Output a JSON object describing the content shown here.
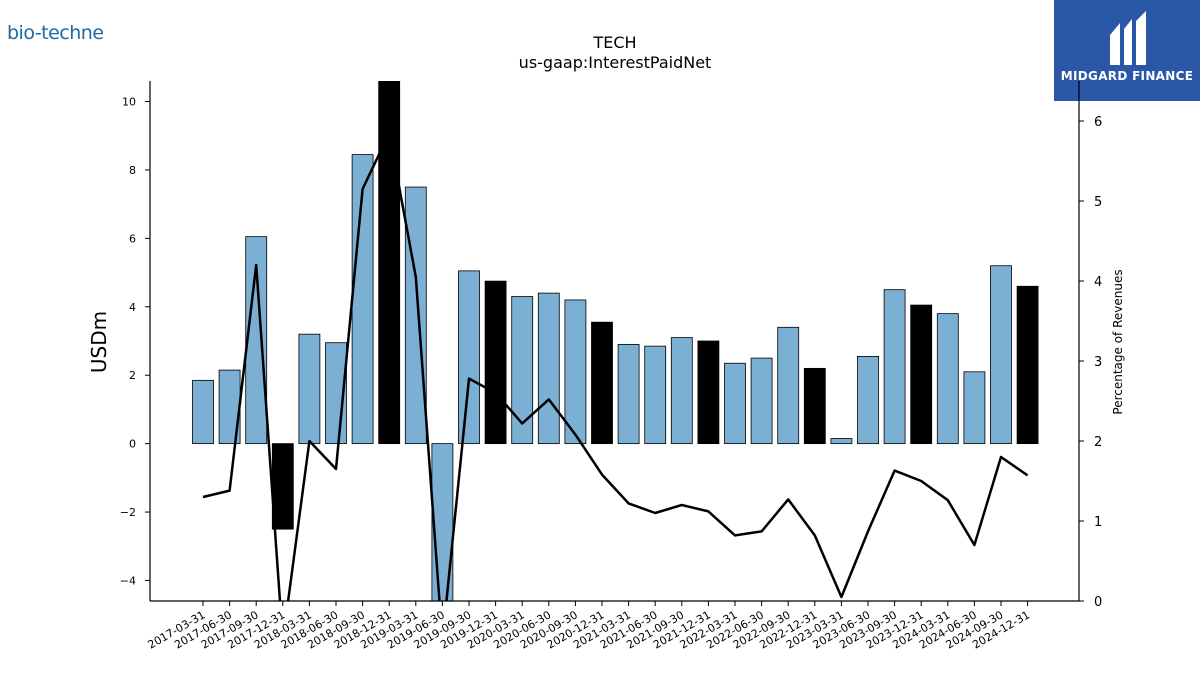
{
  "brand": {
    "left_logo": "bio-techne",
    "right_logo": "MIDGARD FINANCE"
  },
  "chart_data": {
    "type": "bar",
    "title": "TECH",
    "subtitle": "us-gaap:InterestPaidNet",
    "ylabel": "USDm",
    "y2label": "Percentage of Revenues",
    "ylim": [
      -4.6,
      10.6
    ],
    "y2lim": [
      0,
      6.5
    ],
    "yticks": [
      -4,
      -2,
      0,
      2,
      4,
      6,
      8,
      10
    ],
    "y2ticks": [
      0,
      1,
      2,
      3,
      4,
      5,
      6
    ],
    "categories": [
      "2017-03-31",
      "2017-06-30",
      "2017-09-30",
      "2017-12-31",
      "2018-03-31",
      "2018-06-30",
      "2018-09-30",
      "2018-12-31",
      "2019-03-31",
      "2019-06-30",
      "2019-09-30",
      "2019-12-31",
      "2020-03-31",
      "2020-06-30",
      "2020-09-30",
      "2020-12-31",
      "2021-03-31",
      "2021-06-30",
      "2021-09-30",
      "2021-12-31",
      "2022-03-31",
      "2022-06-30",
      "2022-09-30",
      "2022-12-31",
      "2023-03-31",
      "2023-06-30",
      "2023-09-30",
      "2023-12-31",
      "2024-03-31",
      "2024-06-30",
      "2024-09-30",
      "2024-12-31"
    ],
    "series": [
      {
        "values": [
          1.85,
          2.15,
          6.05,
          -2.5,
          3.2,
          2.95,
          8.45,
          10.6,
          7.5,
          -4.6,
          5.05,
          4.75,
          4.3,
          4.4,
          4.2,
          3.55,
          2.9,
          2.85,
          3.1,
          3.0,
          2.35,
          2.5,
          3.4,
          2.2,
          0.15,
          2.55,
          4.5,
          4.05,
          3.8,
          2.1,
          5.2,
          4.6
        ],
        "highlight": [
          false,
          false,
          false,
          true,
          false,
          false,
          false,
          true,
          false,
          false,
          false,
          true,
          false,
          false,
          false,
          true,
          false,
          false,
          false,
          true,
          false,
          false,
          false,
          true,
          false,
          false,
          false,
          true,
          false,
          false,
          false,
          true
        ]
      },
      {
        "axis": "right",
        "type": "line",
        "values": [
          1.3,
          1.38,
          4.2,
          -0.5,
          2.0,
          1.65,
          5.15,
          5.85,
          4.05,
          -0.5,
          2.78,
          2.6,
          2.22,
          2.52,
          2.08,
          1.58,
          1.22,
          1.1,
          1.2,
          1.12,
          0.82,
          0.87,
          1.27,
          0.82,
          0.05,
          0.87,
          1.63,
          1.5,
          1.26,
          0.7,
          1.8,
          1.57
        ]
      }
    ],
    "colors": {
      "bar": "#7bafd4",
      "bar_highlight": "#000000",
      "line": "#000000"
    }
  }
}
